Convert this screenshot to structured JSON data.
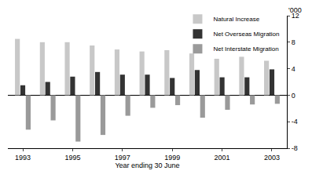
{
  "chart_data": {
    "type": "bar",
    "x_label": "Year ending 30 June",
    "y_label": "'000",
    "categories": [
      "1993",
      null,
      "1995",
      null,
      "1997",
      null,
      "1999",
      null,
      "2001",
      null,
      "2003"
    ],
    "series": [
      {
        "name": "Natural Increase",
        "color": "#c8c8c8",
        "values": [
          8.5,
          8.0,
          8.0,
          7.5,
          6.9,
          6.6,
          6.8,
          6.3,
          5.5,
          5.8,
          5.2
        ]
      },
      {
        "name": "Net Overseas Migration",
        "color": "#333333",
        "values": [
          1.5,
          2.0,
          2.8,
          3.5,
          3.1,
          3.1,
          2.6,
          3.8,
          2.7,
          2.7,
          3.9
        ]
      },
      {
        "name": "Net Interstate Migration",
        "color": "#9a9a9a",
        "values": [
          -5.2,
          -3.8,
          -7.0,
          -6.0,
          -3.1,
          -1.9,
          -1.5,
          -3.4,
          -2.2,
          -1.4,
          -1.3
        ]
      }
    ],
    "ylim": [
      -8,
      12
    ],
    "yticks": [
      -8,
      -4,
      0,
      4,
      8,
      12
    ],
    "grid": false,
    "legend": "top-right"
  }
}
